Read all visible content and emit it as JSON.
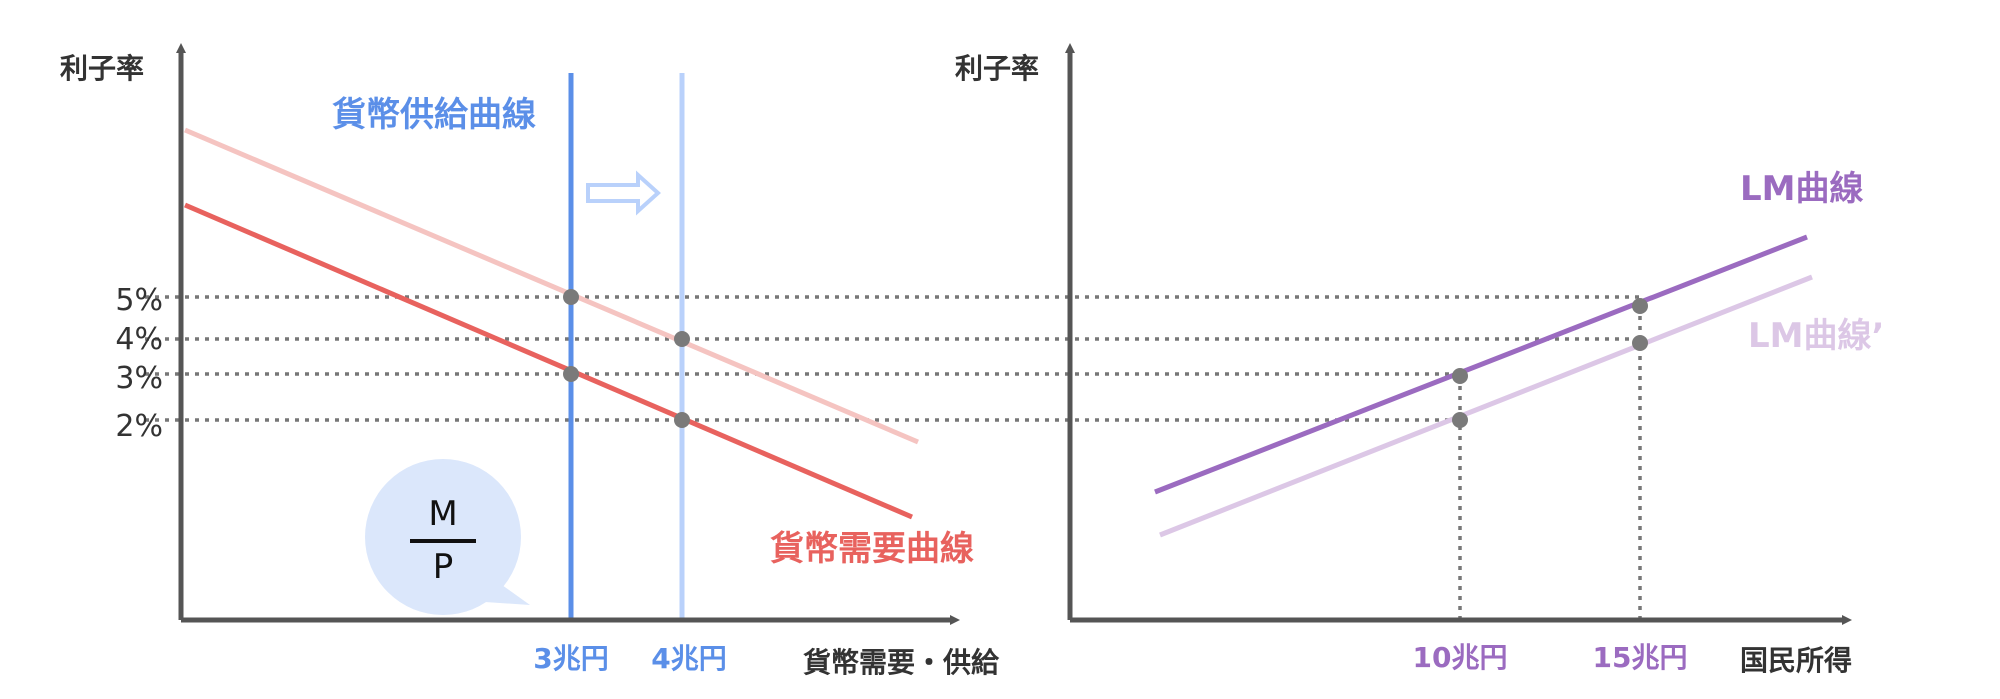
{
  "left_panel": {
    "y_axis_label": "利子率",
    "x_axis_label": "貨幣需要・供給",
    "y_ticks": [
      "5%",
      "4%",
      "3%",
      "2%"
    ],
    "x_ticks": [
      "3兆円",
      "4兆円"
    ],
    "money_supply_label": "貨幣供給曲線",
    "money_demand_label": "貨幣需要曲線",
    "bubble_numerator": "M",
    "bubble_denominator": "P"
  },
  "right_panel": {
    "y_axis_label": "利子率",
    "x_axis_label": "国民所得",
    "x_ticks": [
      "10兆円",
      "15兆円"
    ],
    "lm_label": "LM曲線",
    "lm_shifted_label": "LM曲線’"
  },
  "colors": {
    "axis": "#555555",
    "supply": "#5b8fe8",
    "supply_light": "#b9d1fb",
    "demand": "#e8625e",
    "demand_light": "#f5c4c1",
    "lm": "#9b6bc0",
    "lm_light": "#dcc7e6",
    "point": "#7a7a7a",
    "bubble": "#dbe7fb"
  }
}
